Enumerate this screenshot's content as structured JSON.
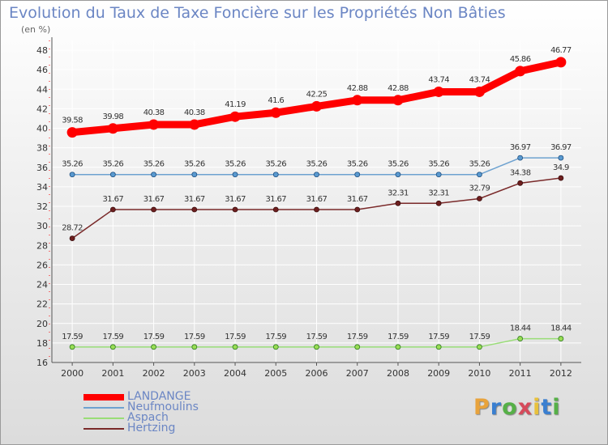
{
  "title": "Evolution du Taux de Taxe Foncière sur les Propriétés Non Bâties",
  "unit": "(en %)",
  "brand": {
    "letters": [
      "P",
      "r",
      "o",
      "x",
      "i",
      "t",
      "i"
    ],
    "colors": [
      "#e8a33c",
      "#3a7fd0",
      "#56b047",
      "#d64a5b",
      "#e8c13c",
      "#3a7fd0",
      "#56b047"
    ]
  },
  "chart_data": {
    "type": "line",
    "x": [
      "2000",
      "2001",
      "2002",
      "2003",
      "2004",
      "2005",
      "2006",
      "2007",
      "2008",
      "2009",
      "2010",
      "2011",
      "2012"
    ],
    "yticks": [
      16,
      18,
      20,
      22,
      24,
      26,
      28,
      30,
      32,
      34,
      36,
      38,
      40,
      42,
      44,
      46,
      48
    ],
    "ylim": [
      16,
      49
    ],
    "grid": true,
    "legend_position": "bottom-left",
    "series": [
      {
        "name": "LANDANGE",
        "color": "#ff0000",
        "values": [
          39.58,
          39.98,
          40.38,
          40.38,
          41.19,
          41.6,
          42.25,
          42.88,
          42.88,
          43.74,
          43.74,
          45.86,
          46.77
        ],
        "labels": [
          "39.58",
          "39.98",
          "40.38",
          "40.38",
          "41.19",
          "41.6",
          "42.25",
          "42.88",
          "42.88",
          "43.74",
          "43.74",
          "45.86",
          "46.77"
        ]
      },
      {
        "name": "Neufmoulins",
        "color": "#6ea2d0",
        "values": [
          35.26,
          35.26,
          35.26,
          35.26,
          35.26,
          35.26,
          35.26,
          35.26,
          35.26,
          35.26,
          35.26,
          36.97,
          36.97
        ],
        "labels": [
          "35.26",
          "35.26",
          "35.26",
          "35.26",
          "35.26",
          "35.26",
          "35.26",
          "35.26",
          "35.26",
          "35.26",
          "35.26",
          "36.97",
          "36.97"
        ]
      },
      {
        "name": "Aspach",
        "color": "#99dd77",
        "values": [
          17.59,
          17.59,
          17.59,
          17.59,
          17.59,
          17.59,
          17.59,
          17.59,
          17.59,
          17.59,
          17.59,
          18.44,
          18.44
        ],
        "labels": [
          "17.59",
          "17.59",
          "17.59",
          "17.59",
          "17.59",
          "17.59",
          "17.59",
          "17.59",
          "17.59",
          "17.59",
          "17.59",
          "18.44",
          "18.44"
        ]
      },
      {
        "name": "Hertzing",
        "color": "#7a2a2a",
        "values": [
          28.72,
          31.67,
          31.67,
          31.67,
          31.67,
          31.67,
          31.67,
          31.67,
          32.31,
          32.31,
          32.79,
          34.38,
          34.9
        ],
        "labels": [
          "28.72",
          "31.67",
          "31.67",
          "31.67",
          "31.67",
          "31.67",
          "31.67",
          "31.67",
          "32.31",
          "32.31",
          "32.79",
          "34.38",
          "34.9"
        ]
      }
    ]
  }
}
